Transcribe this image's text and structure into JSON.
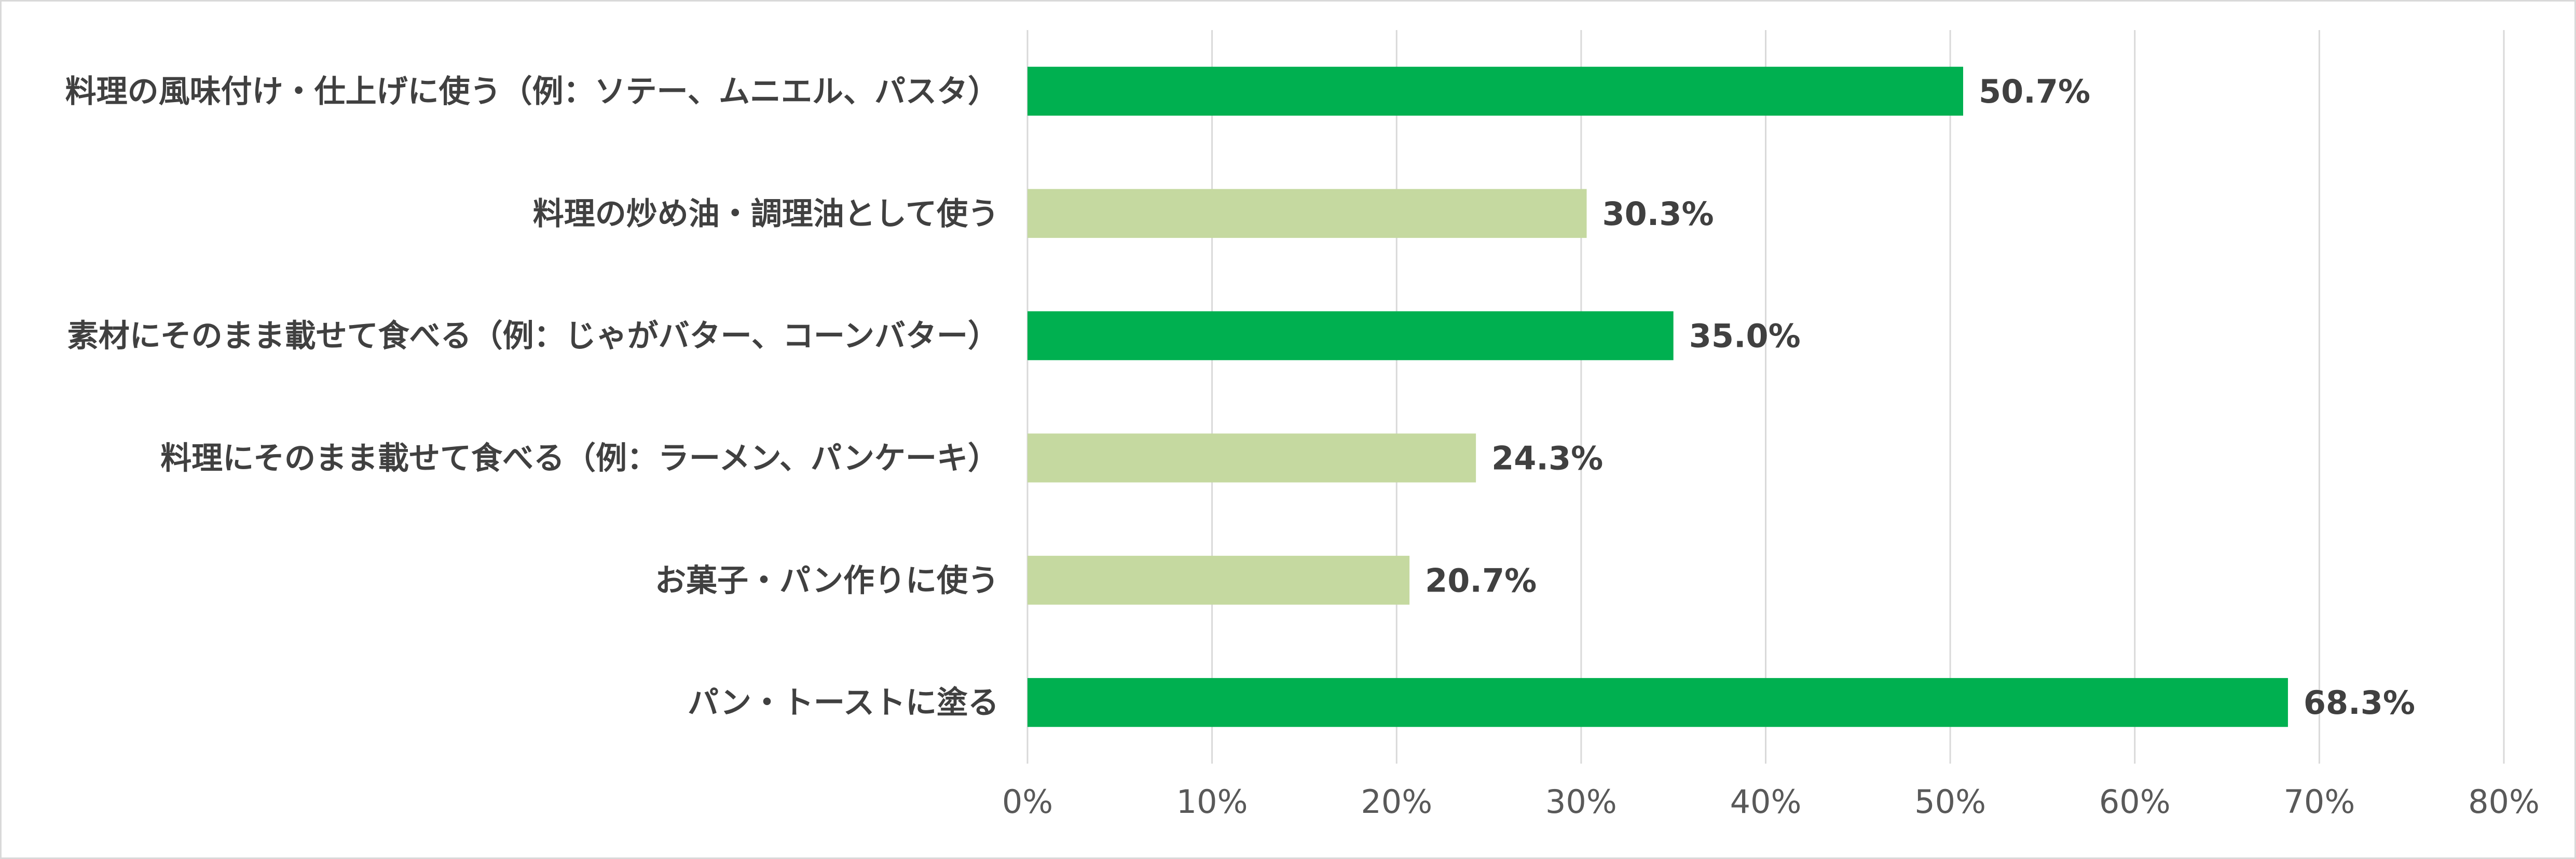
{
  "chart_data": {
    "type": "bar",
    "orientation": "horizontal",
    "title": "",
    "xlabel": "",
    "ylabel": "",
    "xlim": [
      0,
      80
    ],
    "x_ticks": [
      "0%",
      "10%",
      "20%",
      "30%",
      "40%",
      "50%",
      "60%",
      "70%",
      "80%"
    ],
    "grid": "vertical",
    "legend": "none",
    "categories": [
      "料理の風味付け・仕上げに使う（例：ソテー、ムニエル、パスタ）",
      "料理の炒め油・調理油として使う",
      "素材にそのまま載せて食べる（例：じゃがバター、コーンバター）",
      "料理にそのまま載せて食べる（例：ラーメン、パンケーキ）",
      "お菓子・パン作りに使う",
      "パン・トーストに塗る"
    ],
    "values": [
      50.7,
      30.3,
      35.0,
      24.3,
      20.7,
      68.3
    ],
    "value_labels": [
      "50.7%",
      "30.3%",
      "35.0%",
      "24.3%",
      "20.7%",
      "68.3%"
    ],
    "bar_colors": [
      "#00b050",
      "#c5d9a0",
      "#00b050",
      "#c5d9a0",
      "#c5d9a0",
      "#00b050"
    ]
  }
}
